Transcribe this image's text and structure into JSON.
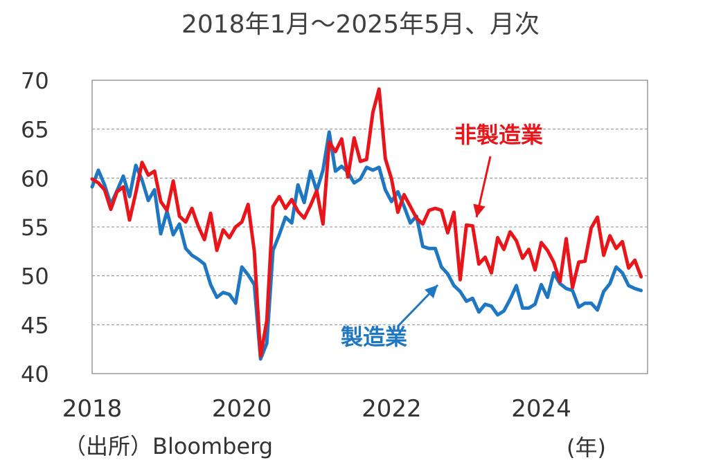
{
  "title": "2018年1月～2025年5月、月次",
  "source": "（出所）Bloomberg",
  "x_unit": "(年)",
  "chart_data": {
    "type": "line",
    "ylim": [
      40,
      70
    ],
    "yticks": [
      "40",
      "45",
      "50",
      "55",
      "60",
      "65",
      "70"
    ],
    "xlim": [
      2018.0,
      2025.42
    ],
    "xticks": [
      "2018",
      "2020",
      "2022",
      "2024"
    ],
    "grid": true,
    "series": [
      {
        "name": "製造業",
        "color": "#1f77c2",
        "label_position": "bottom",
        "values": [
          59.1,
          60.8,
          59.3,
          57.3,
          58.7,
          60.2,
          58.1,
          61.3,
          59.8,
          57.7,
          58.8,
          54.3,
          56.6,
          54.2,
          55.3,
          52.8,
          52.1,
          51.7,
          51.2,
          49.1,
          47.8,
          48.3,
          48.1,
          47.2,
          50.9,
          50.1,
          49.1,
          41.5,
          43.1,
          52.6,
          54.2,
          56.0,
          55.4,
          59.3,
          57.5,
          60.7,
          58.7,
          60.8,
          64.7,
          60.7,
          61.2,
          60.6,
          59.5,
          59.9,
          61.1,
          60.8,
          61.1,
          58.8,
          57.6,
          58.6,
          57.1,
          55.4,
          56.1,
          53.0,
          52.8,
          52.8,
          50.9,
          50.2,
          49.0,
          48.4,
          47.4,
          47.7,
          46.3,
          47.1,
          46.9,
          46.0,
          46.4,
          47.6,
          49.0,
          46.7,
          46.7,
          47.1,
          49.1,
          47.8,
          50.3,
          49.2,
          48.7,
          48.5,
          46.8,
          47.2,
          47.2,
          46.5,
          48.4,
          49.2,
          50.9,
          50.3,
          49.0,
          48.7,
          48.5
        ]
      },
      {
        "name": "非製造業",
        "color": "#e8151b",
        "label_position": "top-right",
        "values": [
          59.9,
          59.5,
          58.8,
          56.8,
          58.6,
          59.1,
          55.7,
          58.5,
          61.6,
          60.3,
          60.7,
          57.6,
          56.7,
          59.7,
          56.1,
          55.5,
          56.9,
          55.1,
          53.7,
          56.4,
          52.6,
          54.7,
          53.9,
          55.0,
          55.5,
          57.3,
          52.5,
          41.8,
          45.4,
          57.1,
          58.1,
          56.9,
          57.8,
          56.6,
          55.9,
          57.2,
          58.7,
          55.3,
          63.7,
          62.7,
          64.0,
          60.1,
          64.1,
          61.7,
          61.9,
          66.7,
          69.1,
          62.0,
          59.9,
          56.5,
          58.3,
          57.1,
          55.9,
          55.3,
          56.7,
          56.9,
          56.7,
          54.4,
          56.5,
          49.6,
          55.2,
          55.1,
          51.2,
          51.9,
          50.3,
          53.9,
          52.7,
          54.5,
          53.6,
          51.8,
          52.7,
          50.6,
          53.4,
          52.6,
          51.4,
          49.4,
          53.8,
          48.8,
          51.4,
          51.5,
          54.9,
          56.0,
          52.1,
          54.1,
          52.8,
          53.5,
          50.8,
          51.6,
          49.9
        ]
      }
    ]
  }
}
